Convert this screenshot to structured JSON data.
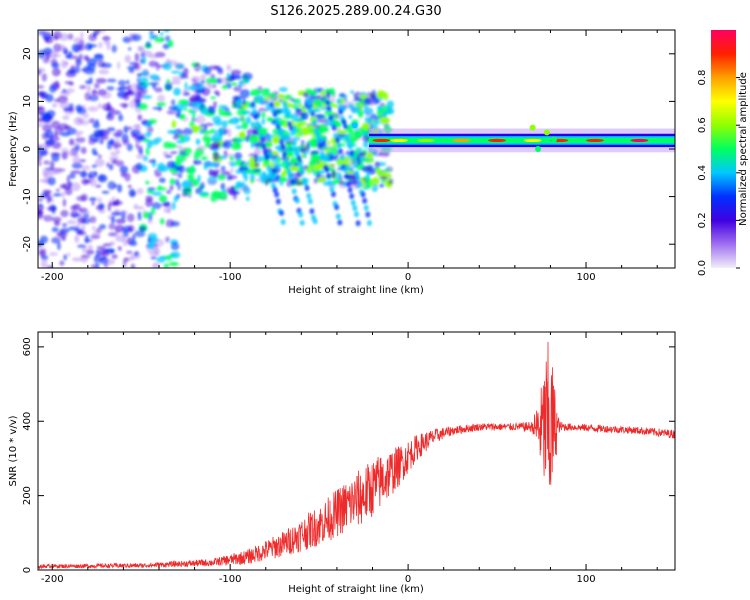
{
  "title": "S126.2025.289.00.24.G30",
  "chart_data": [
    {
      "type": "heatmap",
      "name": "spectrogram",
      "xlabel": "Height of straight line (km)",
      "ylabel": "Frequency (Hz)",
      "xlim": [
        -208,
        150
      ],
      "ylim": [
        -25,
        25
      ],
      "xticks": [
        -200,
        -100,
        0,
        100
      ],
      "xtick_labels": [
        "-200",
        "-100",
        "0",
        "100"
      ],
      "yticks": [
        -20,
        -10,
        0,
        10,
        20
      ],
      "ytick_labels": [
        "-20",
        "-10",
        "0",
        "10",
        "20"
      ],
      "colorbar": {
        "label": "Normalized spectral amplitude",
        "range": [
          0,
          1
        ],
        "ticks": [
          0.0,
          0.2,
          0.4,
          0.6,
          0.8
        ],
        "tick_labels": [
          "0.0",
          "0.2",
          "0.4",
          "0.6",
          "0.8"
        ],
        "colors": [
          "#f0eef8",
          "#a070f0",
          "#4000e0",
          "#0030ff",
          "#00c8ff",
          "#00ff60",
          "#90ff00",
          "#ffff00",
          "#ffa000",
          "#ff2000",
          "#ff0060"
        ]
      },
      "ridge": {
        "description": "strong narrow band near 1.5-2 Hz for heights > -20 km",
        "x_start": -22,
        "x_end": 150,
        "frequency": 1.8
      }
    },
    {
      "type": "line",
      "name": "snr",
      "xlabel": "Height of straight line (km)",
      "ylabel": "SNR (10 * v/v)",
      "xlim": [
        -208,
        150
      ],
      "ylim": [
        0,
        640
      ],
      "xticks": [
        -200,
        -100,
        0,
        100
      ],
      "xtick_labels": [
        "-200",
        "-100",
        "0",
        "100"
      ],
      "yticks": [
        0,
        200,
        400,
        600
      ],
      "ytick_labels": [
        "0",
        "200",
        "400",
        "600"
      ],
      "color": "#ee2a2a",
      "envelope": {
        "x": [
          -208,
          -150,
          -110,
          -90,
          -70,
          -50,
          -35,
          -25,
          -15,
          -5,
          5,
          15,
          25,
          40,
          60,
          70,
          75,
          78,
          80,
          82,
          85,
          90,
          110,
          130,
          150
        ],
        "mean": [
          10,
          12,
          20,
          35,
          70,
          120,
          170,
          200,
          240,
          280,
          330,
          360,
          375,
          385,
          385,
          385,
          380,
          380,
          380,
          385,
          385,
          385,
          380,
          375,
          365
        ],
        "noise": [
          5,
          6,
          10,
          20,
          35,
          55,
          70,
          80,
          75,
          55,
          35,
          20,
          12,
          10,
          10,
          15,
          120,
          230,
          250,
          130,
          15,
          10,
          10,
          10,
          12
        ]
      }
    }
  ]
}
